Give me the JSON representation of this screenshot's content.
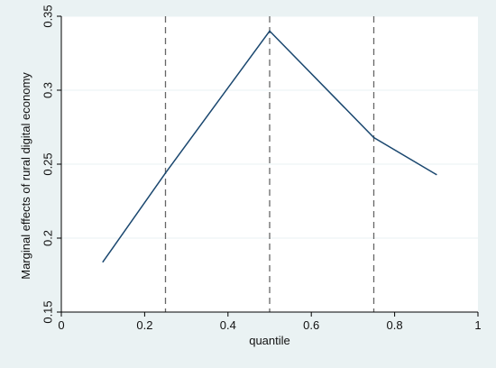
{
  "chart_data": {
    "type": "line",
    "title": "",
    "xlabel": "quantile",
    "ylabel": "Marginal effects of rural digital economy",
    "xlim": [
      0,
      1
    ],
    "ylim": [
      0.15,
      0.35
    ],
    "xticks": [
      0,
      0.2,
      0.4,
      0.6,
      0.8,
      1
    ],
    "xtick_labels": [
      "0",
      "0.2",
      "0.4",
      "0.6",
      "0.8",
      "1"
    ],
    "yticks": [
      0.15,
      0.2,
      0.25,
      0.3,
      0.35
    ],
    "ytick_labels": [
      "0.15",
      "0.2",
      "0.25",
      "0.3",
      "0.35"
    ],
    "grid": "horizontal",
    "series": [
      {
        "x": [
          0.1,
          0.25,
          0.5,
          0.75,
          0.9
        ],
        "y": [
          0.184,
          0.244,
          0.34,
          0.268,
          0.243
        ]
      }
    ],
    "reference_lines": {
      "orientation": "vertical",
      "style": "dashed",
      "x": [
        0.25,
        0.5,
        0.75
      ]
    },
    "colors": {
      "outer_background": "#eaf2f3",
      "plot_background": "#ffffff",
      "line": "#1a476f",
      "reference_line": "#666666",
      "grid": "#eaf2f3"
    }
  }
}
